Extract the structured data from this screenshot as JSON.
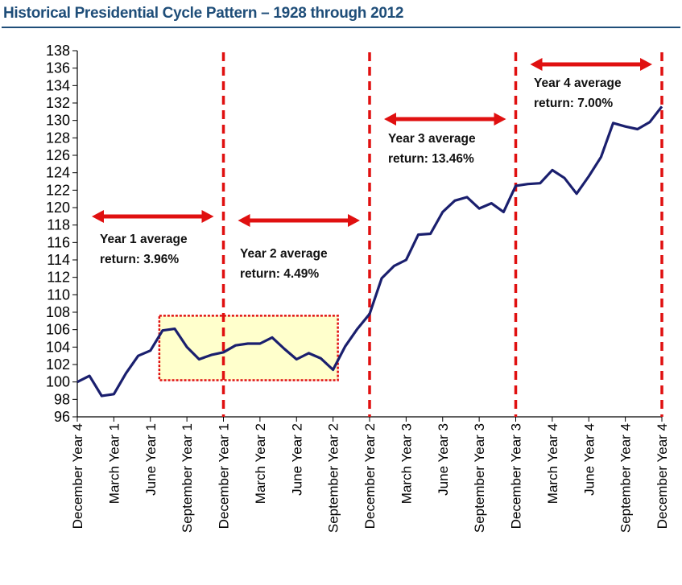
{
  "title": "Historical Presidential Cycle Pattern – 1928 through 2012",
  "colors": {
    "title": "#1f4e79",
    "line": "#1a1f6e",
    "divider": "#e01010",
    "arrow": "#e01010",
    "highlight_fill": "#ffffcc",
    "highlight_border": "#e01010"
  },
  "chart_data": {
    "type": "line",
    "title": "Historical Presidential Cycle Pattern – 1928 through 2012",
    "xlabel": "",
    "ylabel": "",
    "ylim": [
      96,
      138
    ],
    "yticks": [
      96,
      98,
      100,
      102,
      104,
      106,
      108,
      110,
      112,
      114,
      116,
      118,
      120,
      122,
      124,
      126,
      128,
      130,
      132,
      134,
      136,
      138
    ],
    "x_points": 49,
    "x_labels": [
      {
        "index": 0,
        "label": "December Year 4"
      },
      {
        "index": 3,
        "label": "March Year 1"
      },
      {
        "index": 6,
        "label": "June Year 1"
      },
      {
        "index": 9,
        "label": "September Year 1"
      },
      {
        "index": 12,
        "label": "December Year 1"
      },
      {
        "index": 15,
        "label": "March Year 2"
      },
      {
        "index": 18,
        "label": "June Year 2"
      },
      {
        "index": 21,
        "label": "September Year 2"
      },
      {
        "index": 24,
        "label": "December Year 2"
      },
      {
        "index": 27,
        "label": "March Year 3"
      },
      {
        "index": 30,
        "label": "June Year 3"
      },
      {
        "index": 33,
        "label": "September Year 3"
      },
      {
        "index": 36,
        "label": "December Year 3"
      },
      {
        "index": 39,
        "label": "March Year 4"
      },
      {
        "index": 42,
        "label": "June Year 4"
      },
      {
        "index": 45,
        "label": "September Year 4"
      },
      {
        "index": 48,
        "label": "December Year 4"
      }
    ],
    "series": [
      {
        "values": [
          100.0,
          100.7,
          98.4,
          98.6,
          101.0,
          103.0,
          103.6,
          105.9,
          106.1,
          104.0,
          102.6,
          103.1,
          103.4,
          104.2,
          104.4,
          104.4,
          105.1,
          103.8,
          102.6,
          103.3,
          102.7,
          101.4,
          104.1,
          106.1,
          107.8,
          111.9,
          113.3,
          114.0,
          116.9,
          117.0,
          119.5,
          120.8,
          121.2,
          119.9,
          120.5,
          119.5,
          122.5,
          122.7,
          122.8,
          124.3,
          123.4,
          121.6,
          123.6,
          125.8,
          129.7,
          129.3,
          129.0,
          129.8,
          131.6
        ]
      }
    ],
    "dividers_at_index": [
      12,
      24,
      36,
      48
    ],
    "annotations": [
      {
        "line1": "Year 1 average",
        "line2": "return: 3.96%",
        "span": [
          0,
          12
        ]
      },
      {
        "line1": "Year 2 average",
        "line2": "return: 4.49%",
        "span": [
          12,
          24
        ]
      },
      {
        "line1": "Year 3 average",
        "line2": "return: 13.46%",
        "span": [
          24,
          36
        ]
      },
      {
        "line1": "Year 4 average",
        "line2": "return: 7.00%",
        "span": [
          36,
          48
        ]
      }
    ],
    "highlight_box": {
      "x_index": [
        7,
        21
      ],
      "y_range": [
        100.2,
        107.6
      ]
    },
    "grid": false,
    "legend": "none"
  }
}
